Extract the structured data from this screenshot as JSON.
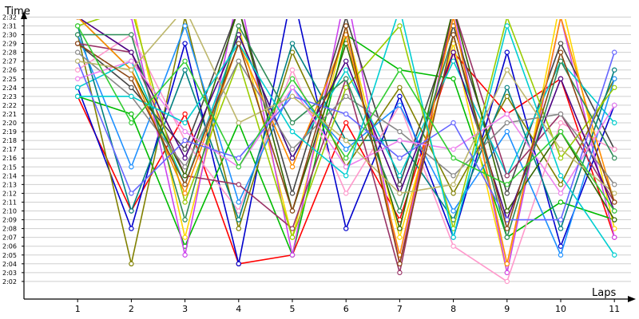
{
  "chart_data": {
    "type": "line",
    "ylabel": "Time",
    "xlabel": "Laps",
    "x": [
      1,
      2,
      3,
      4,
      5,
      6,
      7,
      8,
      9,
      10,
      11
    ],
    "xlim": [
      0,
      11.4
    ],
    "ylim": [
      "2:00",
      "2:34"
    ],
    "y_ticks": [
      "2:02",
      "2:03",
      "2:04",
      "2:05",
      "2:06",
      "2:07",
      "2:08",
      "2:09",
      "2:10",
      "2:11",
      "2:12",
      "2:13",
      "2:14",
      "2:15",
      "2:16",
      "2:17",
      "2:18",
      "2:19",
      "2:20",
      "2:21",
      "2:22",
      "2:23",
      "2:24",
      "2:25",
      "2:26",
      "2:27",
      "2:28",
      "2:29",
      "2:30",
      "2:31",
      "2:32"
    ],
    "grid": true,
    "legend": "none",
    "series": [
      {
        "color": "#ff0000",
        "values": [
          "2:23",
          "2:10",
          "2:21",
          "2:04",
          "2:05",
          "2:20",
          "2:09",
          "2:28",
          "2:21",
          "2:25",
          "2:07"
        ]
      },
      {
        "color": "#0000cc",
        "values": [
          "2:24",
          "2:08",
          "2:29",
          "2:04",
          "2:35",
          "2:08",
          "2:23",
          "2:07",
          "2:28",
          "2:06",
          "2:22"
        ]
      },
      {
        "color": "#00bb00",
        "values": [
          "2:23",
          "2:21",
          "2:06",
          "2:20",
          "2:05",
          "2:30",
          "2:26",
          "2:25",
          "2:07",
          "2:11",
          "2:09"
        ]
      },
      {
        "color": "#ffd700",
        "values": [
          "2:33",
          "2:34",
          "2:07",
          "2:31",
          "2:07",
          "2:31",
          "2:07",
          "2:29",
          "2:03",
          "2:34",
          "2:08"
        ]
      },
      {
        "color": "#cc44ee",
        "values": [
          "2:34",
          "2:32",
          "2:05",
          "2:35",
          "2:05",
          "2:35",
          "2:04",
          "2:33",
          "2:03",
          "2:32",
          "2:07"
        ]
      },
      {
        "color": "#444444",
        "values": [
          "2:29",
          "2:24",
          "2:17",
          "2:33",
          "2:12",
          "2:32",
          "2:13",
          "2:31",
          "2:12",
          "2:29",
          "2:17"
        ]
      },
      {
        "color": "#00cccc",
        "values": [
          "2:24",
          "2:27",
          "2:13",
          "2:30",
          "2:16",
          "2:26",
          "2:14",
          "2:27",
          "2:14",
          "2:27",
          "2:20"
        ]
      },
      {
        "color": "#808000",
        "values": [
          "2:30",
          "2:04",
          "2:32",
          "2:08",
          "2:28",
          "2:15",
          "2:24",
          "2:12",
          "2:23",
          "2:13",
          "2:25"
        ]
      },
      {
        "color": "#ff99cc",
        "values": [
          "2:26",
          "2:30",
          "2:18",
          "2:10",
          "2:26",
          "2:12",
          "2:22",
          "2:06",
          "2:02",
          "2:20",
          "2:17"
        ]
      },
      {
        "color": "#008080",
        "values": [
          "2:31",
          "2:10",
          "2:26",
          "2:09",
          "2:29",
          "2:18",
          "2:18",
          "2:09",
          "2:24",
          "2:08",
          "2:26"
        ]
      },
      {
        "color": "#1e90ff",
        "values": [
          "2:30",
          "2:15",
          "2:31",
          "2:11",
          "2:24",
          "2:17",
          "2:22",
          "2:10",
          "2:19",
          "2:05",
          "2:25"
        ]
      },
      {
        "color": "#993366",
        "values": [
          "2:29",
          "2:28",
          "2:14",
          "2:13",
          "2:08",
          "2:25",
          "2:03",
          "2:33",
          "2:14",
          "2:21",
          "2:11"
        ]
      },
      {
        "color": "#99cc00",
        "values": [
          "2:31",
          "2:33",
          "2:11",
          "2:27",
          "2:07",
          "2:24",
          "2:31",
          "2:08",
          "2:32",
          "2:16",
          "2:24"
        ]
      },
      {
        "color": "#336600",
        "values": [
          "2:32",
          "2:26",
          "2:14",
          "2:33",
          "2:10",
          "2:29",
          "2:08",
          "2:33",
          "2:10",
          "2:19",
          "2:09"
        ]
      },
      {
        "color": "#4b0082",
        "values": [
          "2:32",
          "2:28",
          "2:16",
          "2:30",
          "2:16",
          "2:27",
          "2:12",
          "2:28",
          "2:09",
          "2:25",
          "2:10"
        ]
      },
      {
        "color": "#ff8c00",
        "values": [
          "2:32",
          "2:26",
          "2:12",
          "2:29",
          "2:15",
          "2:30",
          "2:05",
          "2:32",
          "2:04",
          "2:32",
          "2:11"
        ]
      },
      {
        "color": "#888888",
        "values": [
          "2:28",
          "2:23",
          "2:15",
          "2:27",
          "2:17",
          "2:23",
          "2:19",
          "2:14",
          "2:20",
          "2:21",
          "2:13"
        ]
      },
      {
        "color": "#2e8b57",
        "values": [
          "2:30",
          "2:30",
          "2:09",
          "2:31",
          "2:20",
          "2:25",
          "2:10",
          "2:30",
          "2:07",
          "2:27",
          "2:16"
        ]
      },
      {
        "color": "#ee82ee",
        "values": [
          "2:25",
          "2:27",
          "2:19",
          "2:15",
          "2:24",
          "2:15",
          "2:18",
          "2:17",
          "2:21",
          "2:12",
          "2:22"
        ]
      },
      {
        "color": "#6666ff",
        "values": [
          "2:27",
          "2:12",
          "2:18",
          "2:16",
          "2:23",
          "2:21",
          "2:16",
          "2:20",
          "2:09",
          "2:09",
          "2:28"
        ]
      },
      {
        "color": "#bdb76b",
        "values": [
          "2:27",
          "2:26",
          "2:33",
          "2:20",
          "2:23",
          "2:18",
          "2:12",
          "2:13",
          "2:26",
          "2:17",
          "2:12"
        ]
      },
      {
        "color": "#00ced1",
        "values": [
          "2:23",
          "2:23",
          "2:20",
          "2:29",
          "2:19",
          "2:14",
          "2:33",
          "2:07",
          "2:31",
          "2:14",
          "2:05"
        ]
      },
      {
        "color": "#8b4513",
        "values": [
          "2:29",
          "2:25",
          "2:13",
          "2:29",
          "2:10",
          "2:31",
          "2:04",
          "2:30",
          "2:08",
          "2:28",
          "2:11"
        ]
      },
      {
        "color": "#32cd32",
        "values": [
          "2:31",
          "2:20",
          "2:27",
          "2:15",
          "2:25",
          "2:16",
          "2:26",
          "2:16",
          "2:13",
          "2:19",
          "2:10"
        ]
      }
    ]
  }
}
